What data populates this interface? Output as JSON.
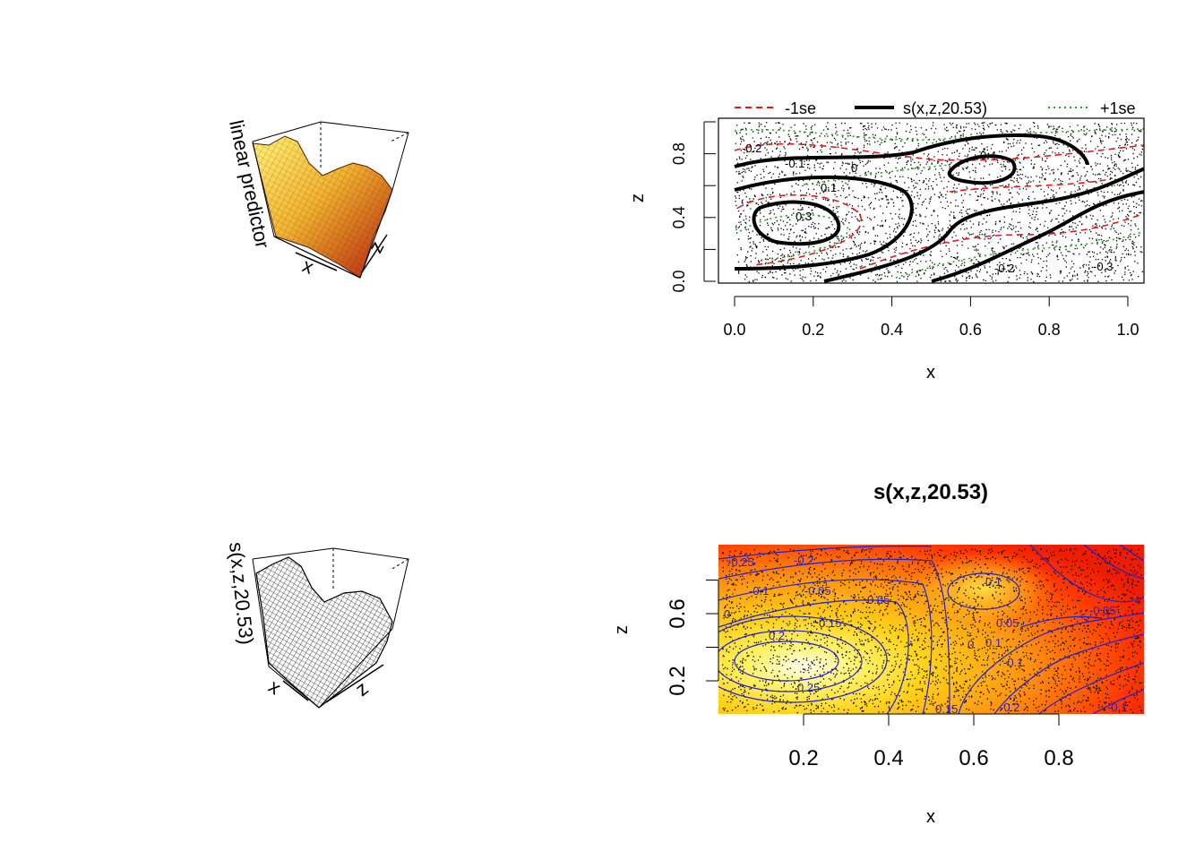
{
  "colors": {
    "se_minus": "#e31a1c",
    "fit": "#000000",
    "se_plus": "#1ea91e",
    "contour": "#1f1fd6",
    "heat_low": "#ff2a00",
    "heat_mid": "#ffd21a",
    "heat_high": "#fffef0"
  },
  "panels": {
    "persp1": {
      "zlabel": "linear predictor",
      "xlabel": "x",
      "ylabel": "z"
    },
    "persp2": {
      "zlabel": "s(x,z,20.53)",
      "xlabel": "x",
      "ylabel": "z"
    },
    "contour": {
      "legend": {
        "minus": "-1se",
        "fit": "s(x,z,20.53)",
        "plus": "+1se"
      },
      "xlabel": "x",
      "ylabel": "z"
    },
    "heat": {
      "title": "s(x,z,20.53)",
      "xlabel": "x",
      "ylabel": "z"
    }
  },
  "chart_data": [
    {
      "type": "surface",
      "panel": "persp1",
      "zlabel": "linear predictor",
      "xlabel": "x",
      "ylabel": "z",
      "shading": "heat colors"
    },
    {
      "type": "contour",
      "panel": "contour",
      "xlabel": "x",
      "ylabel": "z",
      "xlim": [
        0,
        1
      ],
      "ylim": [
        0,
        1
      ],
      "xticks": [
        "0.0",
        "0.2",
        "0.4",
        "0.6",
        "0.8",
        "1.0"
      ],
      "yticks": [
        "0.0",
        "0.4",
        "0.8"
      ],
      "series": [
        {
          "name": "-1se",
          "style": "dashed red"
        },
        {
          "name": "s(x,z,20.53)",
          "style": "solid black"
        },
        {
          "name": "+1se",
          "style": "dotted green"
        }
      ],
      "fit_contour_labels": [
        "-0.2",
        "-0.1",
        "0",
        "0.1",
        "0.3",
        "0.4",
        "-0.3",
        "-0.2"
      ],
      "legend_position": "top"
    },
    {
      "type": "surface",
      "panel": "persp2",
      "zlabel": "s(x,z,20.53)",
      "xlabel": "x",
      "ylabel": "z",
      "shading": "white mesh"
    },
    {
      "type": "heatmap",
      "panel": "heat",
      "title": "s(x,z,20.53)",
      "xlabel": "x",
      "ylabel": "z",
      "xticks": [
        "0.2",
        "0.4",
        "0.6",
        "0.8"
      ],
      "yticks": [
        "0.2",
        "0.6"
      ],
      "contour_labels": [
        "-0.25",
        "-0.2",
        "-0.1",
        "-0.05",
        "0",
        "0.05",
        "0.15",
        "0.2",
        "0.25",
        "0.1",
        "0",
        "0.05",
        "0.1",
        "-0.05",
        "-0.1",
        "0.15",
        "-0.2",
        "-0.1"
      ]
    }
  ]
}
